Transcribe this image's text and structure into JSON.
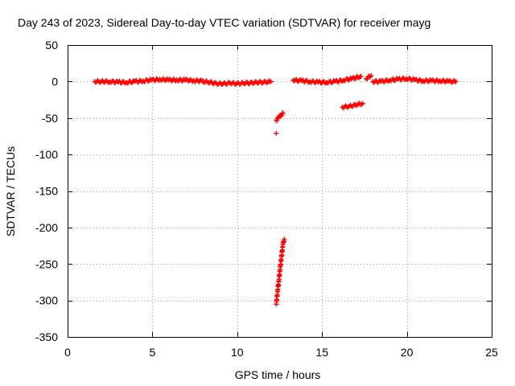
{
  "chart_data": {
    "type": "scatter",
    "title": "Day 243 of 2023, Sidereal Day-to-day VTEC variation (SDTVAR) for receiver mayg",
    "xlabel": "GPS time / hours",
    "ylabel": "SDTVAR / TECUs",
    "xlim": [
      0,
      25
    ],
    "ylim": [
      -350,
      50
    ],
    "xticks": [
      0,
      5,
      10,
      15,
      20,
      25
    ],
    "yticks": [
      -350,
      -300,
      -250,
      -200,
      -150,
      -100,
      -50,
      0,
      50
    ],
    "grid": true,
    "marker": "+",
    "color": "#ff0000",
    "series": [
      {
        "name": "SDTVAR",
        "segments": [
          {
            "x": [
              1.6,
              2.0,
              2.5,
              3.0,
              3.5,
              4.0,
              4.5,
              5.0,
              5.5,
              6.0,
              6.5,
              7.0,
              7.5,
              8.0
            ],
            "y": [
              0,
              0,
              0,
              -1,
              -1,
              0,
              1,
              2,
              3,
              2,
              2,
              2,
              1,
              1
            ]
          },
          {
            "x": [
              8.0,
              8.4,
              8.8,
              9.2,
              9.6,
              10.0,
              10.4,
              10.8,
              11.2,
              11.6,
              12.0
            ],
            "y": [
              0,
              -1,
              -3,
              -3,
              -2,
              -3,
              -2,
              -2,
              -1,
              -1,
              0
            ]
          },
          {
            "x": [
              12.3,
              12.45,
              12.6,
              12.7
            ],
            "y": [
              -53,
              -49,
              -46,
              -43
            ]
          },
          {
            "x": [
              12.3
            ],
            "y": [
              -71
            ]
          },
          {
            "x": [
              12.3,
              12.38,
              12.46,
              12.54,
              12.62,
              12.7,
              12.78
            ],
            "y": [
              -305,
              -288,
              -271,
              -254,
              -238,
              -222,
              -216
            ]
          },
          {
            "x": [
              13.3,
              13.8,
              14.3,
              14.8,
              15.3,
              15.8,
              16.3,
              16.8,
              17.3
            ],
            "y": [
              2,
              1,
              0,
              -1,
              -1,
              0,
              2,
              4,
              7
            ]
          },
          {
            "x": [
              16.2,
              16.6,
              17.0,
              17.4
            ],
            "y": [
              -35,
              -34,
              -32,
              -30
            ]
          },
          {
            "x": [
              17.6,
              17.9
            ],
            "y": [
              4,
              8
            ]
          },
          {
            "x": [
              18.0,
              18.5,
              19.0,
              19.5,
              20.0,
              20.5,
              21.0,
              21.5,
              22.0,
              22.5,
              22.9
            ],
            "y": [
              0,
              0,
              2,
              3,
              4,
              2,
              1,
              1,
              1,
              0,
              0
            ]
          }
        ]
      }
    ]
  }
}
